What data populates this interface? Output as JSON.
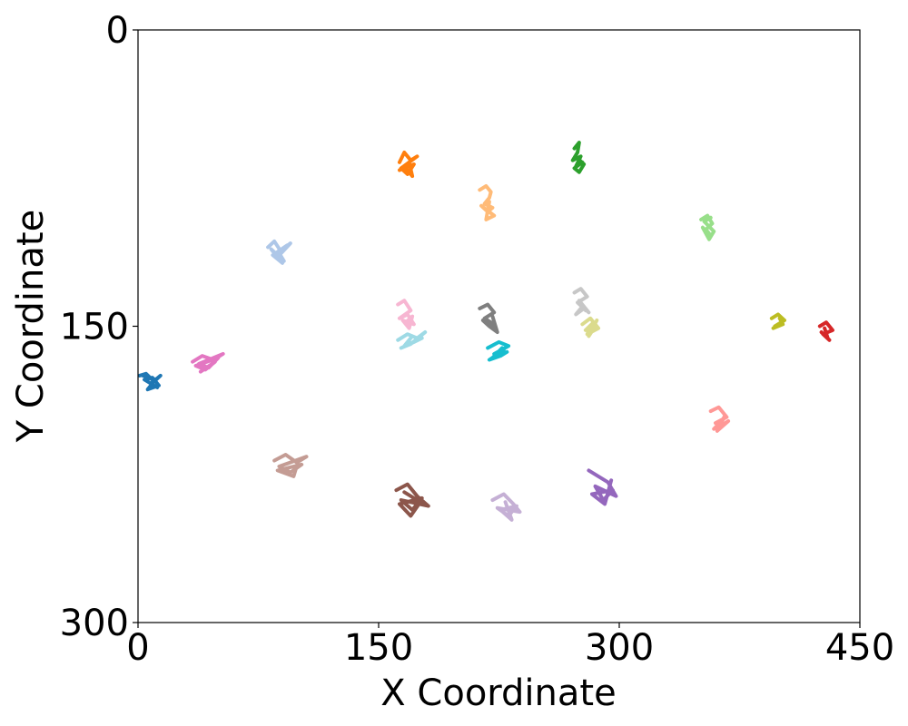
{
  "chart_data": {
    "type": "line",
    "title": "",
    "xlabel": "X Coordinate",
    "ylabel": "Y Coordinate",
    "xlim": [
      0,
      450
    ],
    "ylim": [
      0,
      300
    ],
    "y_inverted": true,
    "x_ticks": [
      "0",
      "150",
      "300",
      "450"
    ],
    "y_ticks": [
      "0",
      "150",
      "300"
    ],
    "grid": false,
    "legend": "none",
    "series": [
      {
        "color": "#1f77b4",
        "x": [
          1,
          5,
          10,
          14,
          8,
          12,
          4,
          9,
          13,
          6,
          11,
          3
        ],
        "y": [
          175,
          174,
          178,
          175,
          179,
          181,
          177,
          176,
          180,
          182,
          177,
          175
        ]
      },
      {
        "color": "#ff7f0e",
        "x": [
          163,
          166,
          170,
          174,
          164,
          168,
          172,
          163,
          169,
          171,
          166
        ],
        "y": [
          67,
          62,
          66,
          64,
          70,
          73,
          68,
          71,
          67,
          74,
          69
        ]
      },
      {
        "color": "#ffbb78",
        "x": [
          213,
          217,
          220,
          219,
          216,
          221,
          218,
          214,
          222,
          217,
          219
        ],
        "y": [
          81,
          79,
          82,
          85,
          88,
          90,
          92,
          89,
          94,
          96,
          87
        ]
      },
      {
        "color": "#2ca02c",
        "x": [
          272,
          275,
          274,
          271,
          276,
          273,
          277,
          272,
          275,
          278,
          274
        ],
        "y": [
          60,
          57,
          62,
          66,
          64,
          69,
          67,
          70,
          72,
          68,
          65
        ]
      },
      {
        "color": "#98df8a",
        "x": [
          351,
          355,
          358,
          354,
          357,
          352,
          356,
          359,
          353,
          357
        ],
        "y": [
          96,
          94,
          98,
          101,
          104,
          100,
          106,
          102,
          97,
          95
        ]
      },
      {
        "color": "#aec7e8",
        "x": [
          81,
          85,
          89,
          95,
          87,
          83,
          91,
          88,
          93,
          84,
          90
        ],
        "y": [
          110,
          107,
          112,
          108,
          115,
          111,
          117,
          113,
          109,
          114,
          118
        ]
      },
      {
        "color": "#e377c2",
        "x": [
          34,
          40,
          47,
          53,
          38,
          44,
          50,
          36,
          42,
          48,
          39
        ],
        "y": [
          168,
          165,
          167,
          164,
          169,
          171,
          166,
          170,
          172,
          168,
          173
        ]
      },
      {
        "color": "#f7b6d2",
        "x": [
          162,
          166,
          170,
          163,
          168,
          172,
          165,
          169,
          171,
          167
        ],
        "y": [
          139,
          137,
          142,
          146,
          144,
          149,
          147,
          151,
          145,
          148
        ]
      },
      {
        "color": "#9edae5",
        "x": [
          162,
          168,
          174,
          179,
          170,
          164,
          172,
          177,
          166,
          171
        ],
        "y": [
          157,
          154,
          156,
          153,
          159,
          161,
          158,
          156,
          160,
          155
        ]
      },
      {
        "color": "#7f7f7f",
        "x": [
          213,
          218,
          222,
          216,
          220,
          223,
          215,
          219,
          224,
          221
        ],
        "y": [
          141,
          139,
          143,
          146,
          148,
          151,
          147,
          150,
          153,
          145
        ]
      },
      {
        "color": "#17becf",
        "x": [
          218,
          225,
          231,
          222,
          228,
          219,
          226,
          230,
          221,
          227
        ],
        "y": [
          161,
          158,
          160,
          164,
          162,
          167,
          165,
          163,
          166,
          161
        ]
      },
      {
        "color": "#c7c7c7",
        "x": [
          272,
          276,
          280,
          274,
          278,
          273,
          277,
          281,
          275,
          279
        ],
        "y": [
          133,
          131,
          135,
          138,
          141,
          144,
          140,
          143,
          137,
          142
        ]
      },
      {
        "color": "#dbdb8d",
        "x": [
          277,
          282,
          287,
          280,
          284,
          279,
          285,
          281,
          286
        ],
        "y": [
          149,
          146,
          151,
          154,
          148,
          152,
          150,
          155,
          147
        ]
      },
      {
        "color": "#bcbd22",
        "x": [
          395,
          399,
          403,
          397,
          401,
          396,
          402,
          400
        ],
        "y": [
          146,
          144,
          147,
          150,
          148,
          151,
          149,
          146
        ]
      },
      {
        "color": "#d62728",
        "x": [
          425,
          429,
          433,
          427,
          431,
          426,
          430,
          428
        ],
        "y": [
          150,
          148,
          152,
          154,
          157,
          153,
          156,
          151
        ]
      },
      {
        "color": "#ff9896",
        "x": [
          357,
          362,
          367,
          360,
          365,
          359,
          364,
          368,
          361,
          366
        ],
        "y": [
          193,
          191,
          196,
          199,
          197,
          202,
          200,
          198,
          203,
          195
        ]
      },
      {
        "color": "#c49c94",
        "x": [
          85,
          92,
          99,
          105,
          88,
          95,
          102,
          87,
          97,
          100
        ],
        "y": [
          218,
          215,
          219,
          216,
          221,
          224,
          220,
          223,
          226,
          218
        ]
      },
      {
        "color": "#8c564b",
        "x": [
          161,
          168,
          174,
          181,
          164,
          171,
          177,
          163,
          170,
          176,
          166
        ],
        "y": [
          233,
          230,
          236,
          241,
          238,
          243,
          237,
          240,
          246,
          239,
          234
        ]
      },
      {
        "color": "#c5b0d5",
        "x": [
          221,
          228,
          234,
          238,
          224,
          231,
          236,
          226,
          233,
          229
        ],
        "y": [
          238,
          235,
          240,
          244,
          242,
          246,
          241,
          243,
          248,
          239
        ]
      },
      {
        "color": "#9467bd",
        "x": [
          281,
          287,
          293,
          298,
          285,
          290,
          296,
          283,
          291,
          295
        ],
        "y": [
          223,
          226,
          229,
          236,
          231,
          238,
          233,
          235,
          240,
          228
        ]
      }
    ]
  }
}
